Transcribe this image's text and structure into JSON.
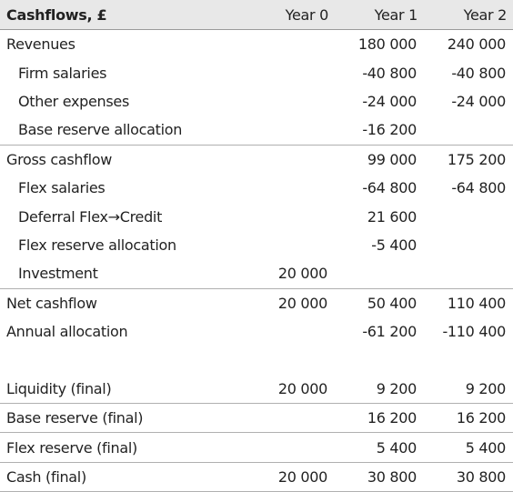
{
  "table": {
    "header": {
      "label": "Cashflows, £",
      "years": [
        "Year 0",
        "Year 1",
        "Year 2"
      ]
    },
    "rows": [
      {
        "label": "Revenues",
        "y0": "",
        "y1": "180 000",
        "y2": "240 000"
      },
      {
        "label": "Firm salaries",
        "y0": "",
        "y1": "-40 800",
        "y2": "-40 800"
      },
      {
        "label": "Other expenses",
        "y0": "",
        "y1": "-24 000",
        "y2": "-24 000"
      },
      {
        "label": "Base reserve allocation",
        "y0": "",
        "y1": "-16 200",
        "y2": ""
      },
      {
        "label": "Gross cashflow",
        "y0": "",
        "y1": "99 000",
        "y2": "175 200"
      },
      {
        "label": "Flex salaries",
        "y0": "",
        "y1": "-64 800",
        "y2": "-64 800"
      },
      {
        "label": "Deferral Flex→Credit",
        "y0": "",
        "y1": "21 600",
        "y2": ""
      },
      {
        "label": "Flex reserve allocation",
        "y0": "",
        "y1": "-5 400",
        "y2": ""
      },
      {
        "label": "Investment",
        "y0": "20 000",
        "y1": "",
        "y2": ""
      },
      {
        "label": "Net cashflow",
        "y0": "20 000",
        "y1": "50 400",
        "y2": "110 400"
      },
      {
        "label": "Annual allocation",
        "y0": "",
        "y1": "-61 200",
        "y2": "-110 400"
      },
      {
        "label": "",
        "y0": "",
        "y1": "",
        "y2": ""
      },
      {
        "label": "Liquidity (final)",
        "y0": "20 000",
        "y1": "9 200",
        "y2": "9 200"
      },
      {
        "label": "Base reserve (final)",
        "y0": "",
        "y1": "16 200",
        "y2": "16 200"
      },
      {
        "label": "Flex reserve (final)",
        "y0": "",
        "y1": "5 400",
        "y2": "5 400"
      },
      {
        "label": "Cash (final)",
        "y0": "20 000",
        "y1": "30 800",
        "y2": "30 800"
      }
    ]
  },
  "colors": {
    "header_background": "#e8e8e8",
    "rule": "#b0b0b0",
    "text": "#222222"
  }
}
